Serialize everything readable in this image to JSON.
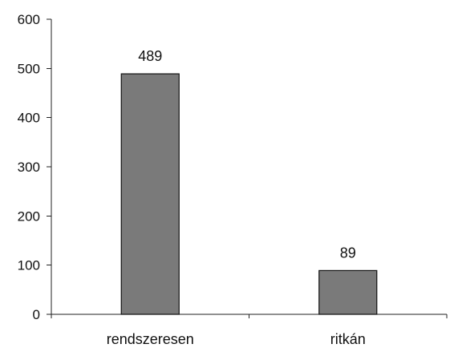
{
  "chart_data": {
    "type": "bar",
    "title": "",
    "xlabel": "",
    "ylabel": "",
    "categories": [
      "rendszeresen",
      "ritkán"
    ],
    "values": [
      489,
      89
    ],
    "data_labels": [
      "489",
      "89"
    ],
    "ylim": [
      0,
      600
    ],
    "y_ticks": [
      0,
      100,
      200,
      300,
      400,
      500,
      600
    ],
    "y_tick_labels": [
      "0",
      "100",
      "200",
      "300",
      "400",
      "500",
      "600"
    ],
    "bar_color": "#7a7a7a",
    "grid": false,
    "legend": "none"
  }
}
